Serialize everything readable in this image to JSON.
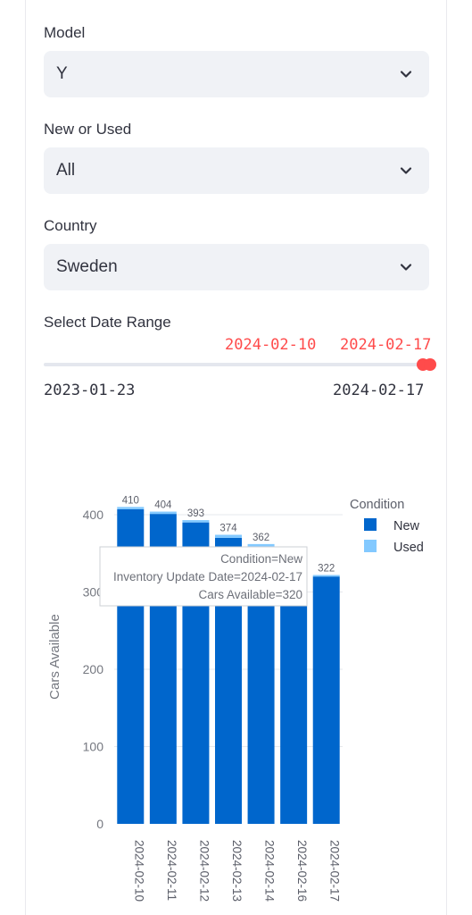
{
  "filters": {
    "model": {
      "label": "Model",
      "value": "Y"
    },
    "new_or_used": {
      "label": "New or Used",
      "value": "All"
    },
    "country": {
      "label": "Country",
      "value": "Sweden"
    }
  },
  "date_range": {
    "label": "Select Date Range",
    "selected_start": "2024-02-10",
    "selected_end": "2024-02-17",
    "min": "2023-01-23",
    "max": "2024-02-17",
    "selected_start_fraction": 0.9808,
    "selected_end_fraction": 1.0
  },
  "chart_data": {
    "type": "bar",
    "stacked": true,
    "categories": [
      "2024-02-10",
      "2024-02-11",
      "2024-02-12",
      "2024-02-13",
      "2024-02-14",
      "2024-02-16",
      "2024-02-17"
    ],
    "series": [
      {
        "name": "New",
        "color": "#0066cc",
        "values": [
          407,
          401,
          390,
          370,
          358,
          310,
          320
        ]
      },
      {
        "name": "Used",
        "color": "#83c9ff",
        "values": [
          3,
          3,
          3,
          4,
          4,
          2,
          2
        ]
      }
    ],
    "totals": [
      410,
      404,
      393,
      374,
      362,
      312,
      322
    ],
    "total_labels": [
      "410",
      "404",
      "393",
      "374",
      "362",
      "",
      "322"
    ],
    "ylabel": "Cars Available",
    "y_ticks": [
      0,
      100,
      200,
      300,
      400
    ],
    "ylim": [
      0,
      432
    ],
    "legend": {
      "title": "Condition",
      "position": "top-right"
    },
    "grid": true,
    "tooltip": {
      "lines": [
        "Condition=New",
        "Inventory Update Date=2024-02-17",
        "Cars Available=320"
      ]
    }
  }
}
